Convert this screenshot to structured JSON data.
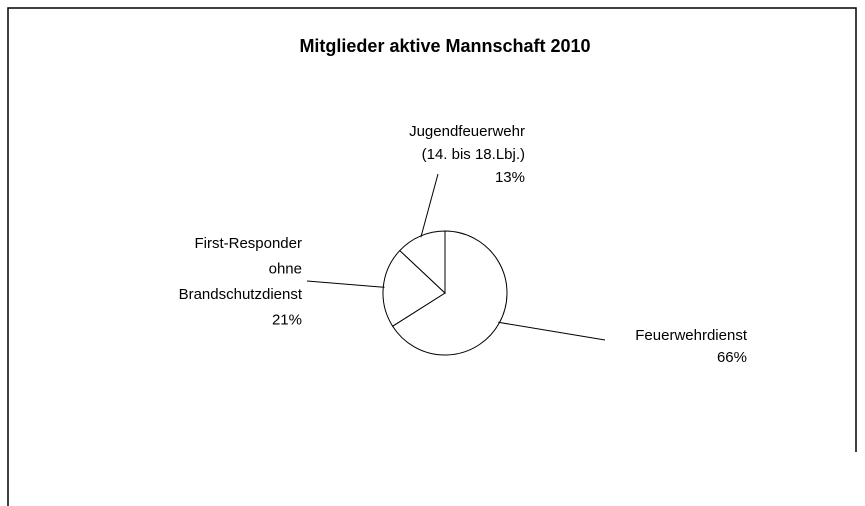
{
  "chart_data": {
    "type": "pie",
    "title": "Mitglieder aktive Mannschaft 2010",
    "categories": [
      [
        "Feuerwehrdienst"
      ],
      [
        "First-Responder",
        "ohne",
        "Brandschutzdienst"
      ],
      [
        "Jugendfeuerwehr",
        "(14. bis 18.Lbj.)"
      ]
    ],
    "values": [
      66,
      21,
      13
    ],
    "value_labels": [
      "66%",
      "21%",
      "13%"
    ],
    "colors": [
      "#ffffff",
      "#ffffff",
      "#ffffff"
    ]
  }
}
